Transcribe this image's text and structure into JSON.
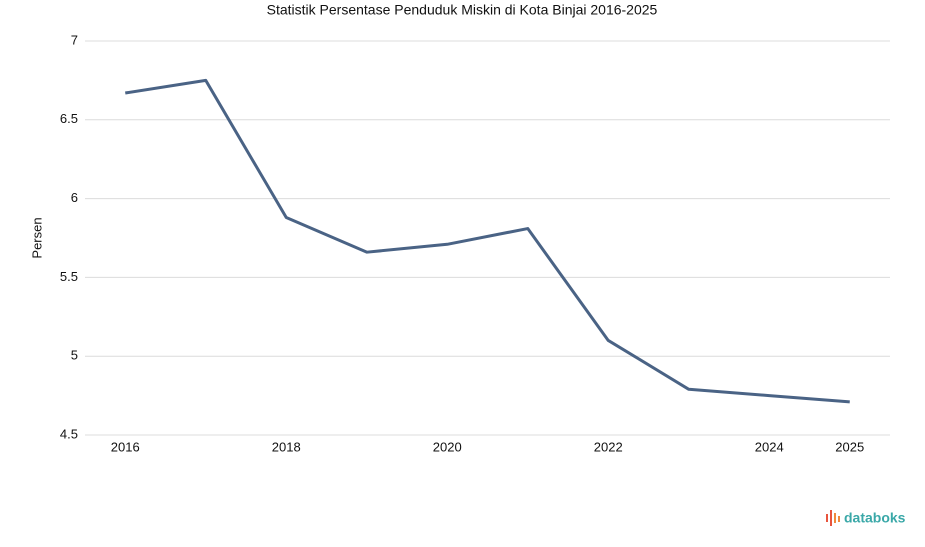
{
  "chart_data": {
    "type": "line",
    "title": "Statistik Persentase Penduduk Miskin di Kota Binjai 2016-2025",
    "y_label": "Persen",
    "x": [
      2016,
      2017,
      2018,
      2019,
      2020,
      2021,
      2022,
      2023,
      2024,
      2025
    ],
    "series": [
      {
        "name": "Persen",
        "color": "#4a6385",
        "values": [
          6.67,
          6.75,
          5.88,
          5.66,
          5.71,
          5.81,
          5.1,
          4.79,
          4.75,
          4.71
        ]
      }
    ],
    "xlim": [
      2015.5,
      2025.5
    ],
    "xticks": [
      2016,
      2018,
      2020,
      2022,
      2024,
      2025
    ],
    "ylim": [
      4.5,
      7
    ],
    "yticks": [
      4.5,
      5,
      5.5,
      6,
      6.5,
      7
    ],
    "grid": true
  },
  "brand": "databoks"
}
